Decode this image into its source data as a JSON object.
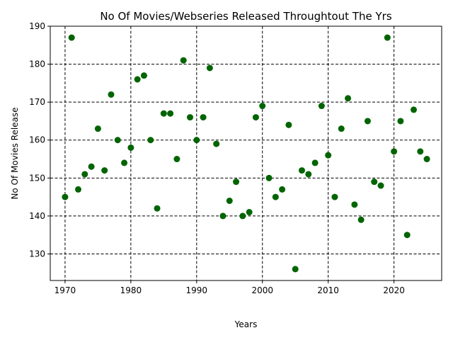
{
  "chart_data": {
    "type": "scatter",
    "title": "No Of Movies/Webseries Released Throughtout The Yrs",
    "xlabel": "Years",
    "ylabel": "No Of Movies Release",
    "xlim": [
      1967.75,
      2027.25
    ],
    "ylim": [
      123,
      190
    ],
    "xticks": [
      1970,
      1980,
      1990,
      2000,
      2010,
      2020
    ],
    "yticks": [
      130,
      140,
      150,
      160,
      170,
      180,
      190
    ],
    "grid": true,
    "grid_style": "dashed",
    "marker_color": "#006400",
    "series": [
      {
        "x": [
          1970,
          1971,
          1972,
          1973,
          1974,
          1975,
          1976,
          1977,
          1978,
          1979,
          1980,
          1981,
          1982,
          1983,
          1984,
          1985,
          1986,
          1987,
          1988,
          1989,
          1990,
          1991,
          1992,
          1993,
          1994,
          1995,
          1996,
          1997,
          1998,
          1999,
          2000,
          2001,
          2002,
          2003,
          2004,
          2005,
          2006,
          2007,
          2008,
          2009,
          2010,
          2011,
          2012,
          2013,
          2014,
          2015,
          2016,
          2017,
          2018,
          2019,
          2020,
          2021,
          2022,
          2023,
          2024,
          2025
        ],
        "y": [
          145,
          187,
          147,
          151,
          153,
          163,
          152,
          172,
          160,
          154,
          158,
          176,
          177,
          160,
          142,
          167,
          167,
          155,
          181,
          166,
          160,
          166,
          179,
          159,
          140,
          144,
          149,
          140,
          141,
          166,
          169,
          150,
          145,
          147,
          164,
          126,
          152,
          151,
          154,
          169,
          156,
          145,
          163,
          171,
          143,
          139,
          165,
          149,
          148,
          187,
          157,
          165,
          135,
          168,
          157,
          155
        ]
      }
    ]
  }
}
